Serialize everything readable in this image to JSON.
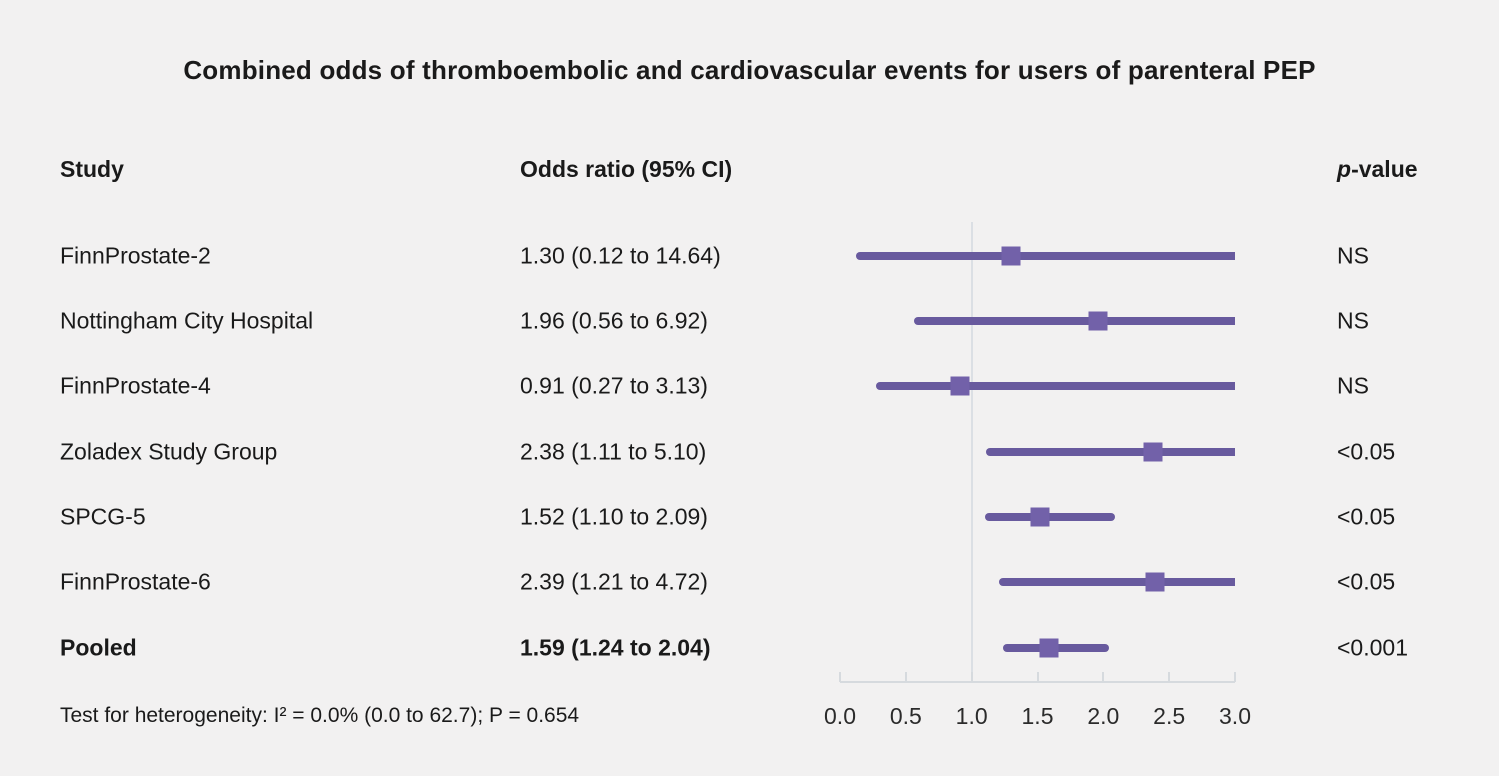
{
  "title": "Combined odds of thromboembolic and cardiovascular events for users of parenteral PEP",
  "columns": {
    "study": "Study",
    "odds_ratio": "Odds ratio (95% CI)",
    "p_italic": "p",
    "p_rest": "-value"
  },
  "footnote": "Test for heterogeneity: I² = 0.0% (0.0 to 62.7); P = 0.654",
  "colors": {
    "background": "#f2f1f1",
    "ci_line": "#685a9e",
    "marker": "#7261a9",
    "grid_line": "#dbdfe4",
    "axis": "#d6dade",
    "text": "#1a1a1a"
  },
  "chart_data": {
    "type": "forest",
    "title": "Combined odds of thromboembolic and cardiovascular events for users of parenteral PEP",
    "xlim": [
      0.0,
      3.0
    ],
    "reference_line": 1.0,
    "grid": false,
    "x_ticks": [
      {
        "value": 0.0,
        "label": "0.0"
      },
      {
        "value": 0.5,
        "label": "0.5"
      },
      {
        "value": 1.0,
        "label": "1.0"
      },
      {
        "value": 1.5,
        "label": "1.5"
      },
      {
        "value": 2.0,
        "label": "2.0"
      },
      {
        "value": 2.5,
        "label": "2.5"
      },
      {
        "value": 3.0,
        "label": "3.0"
      }
    ],
    "rows": [
      {
        "study": "FinnProstate-2",
        "or_text": "1.30 (0.12 to 14.64)",
        "est": 1.3,
        "lo": 0.12,
        "hi": 14.64,
        "p": "NS",
        "bold": false
      },
      {
        "study": "Nottingham City Hospital",
        "or_text": "1.96 (0.56 to 6.92)",
        "est": 1.96,
        "lo": 0.56,
        "hi": 6.92,
        "p": "NS",
        "bold": false
      },
      {
        "study": "FinnProstate-4",
        "or_text": "0.91 (0.27 to 3.13)",
        "est": 0.91,
        "lo": 0.27,
        "hi": 3.13,
        "p": "NS",
        "bold": false
      },
      {
        "study": "Zoladex Study Group",
        "or_text": "2.38 (1.11 to 5.10)",
        "est": 2.38,
        "lo": 1.11,
        "hi": 5.1,
        "p": "<0.05",
        "bold": false
      },
      {
        "study": "SPCG-5",
        "or_text": "1.52 (1.10 to 2.09)",
        "est": 1.52,
        "lo": 1.1,
        "hi": 2.09,
        "p": "<0.05",
        "bold": false
      },
      {
        "study": "FinnProstate-6",
        "or_text": "2.39 (1.21 to 4.72)",
        "est": 2.39,
        "lo": 1.21,
        "hi": 4.72,
        "p": "<0.05",
        "bold": false
      },
      {
        "study": "Pooled",
        "or_text": "1.59 (1.24 to 2.04)",
        "est": 1.59,
        "lo": 1.24,
        "hi": 2.04,
        "p": "<0.001",
        "bold": true
      }
    ]
  }
}
